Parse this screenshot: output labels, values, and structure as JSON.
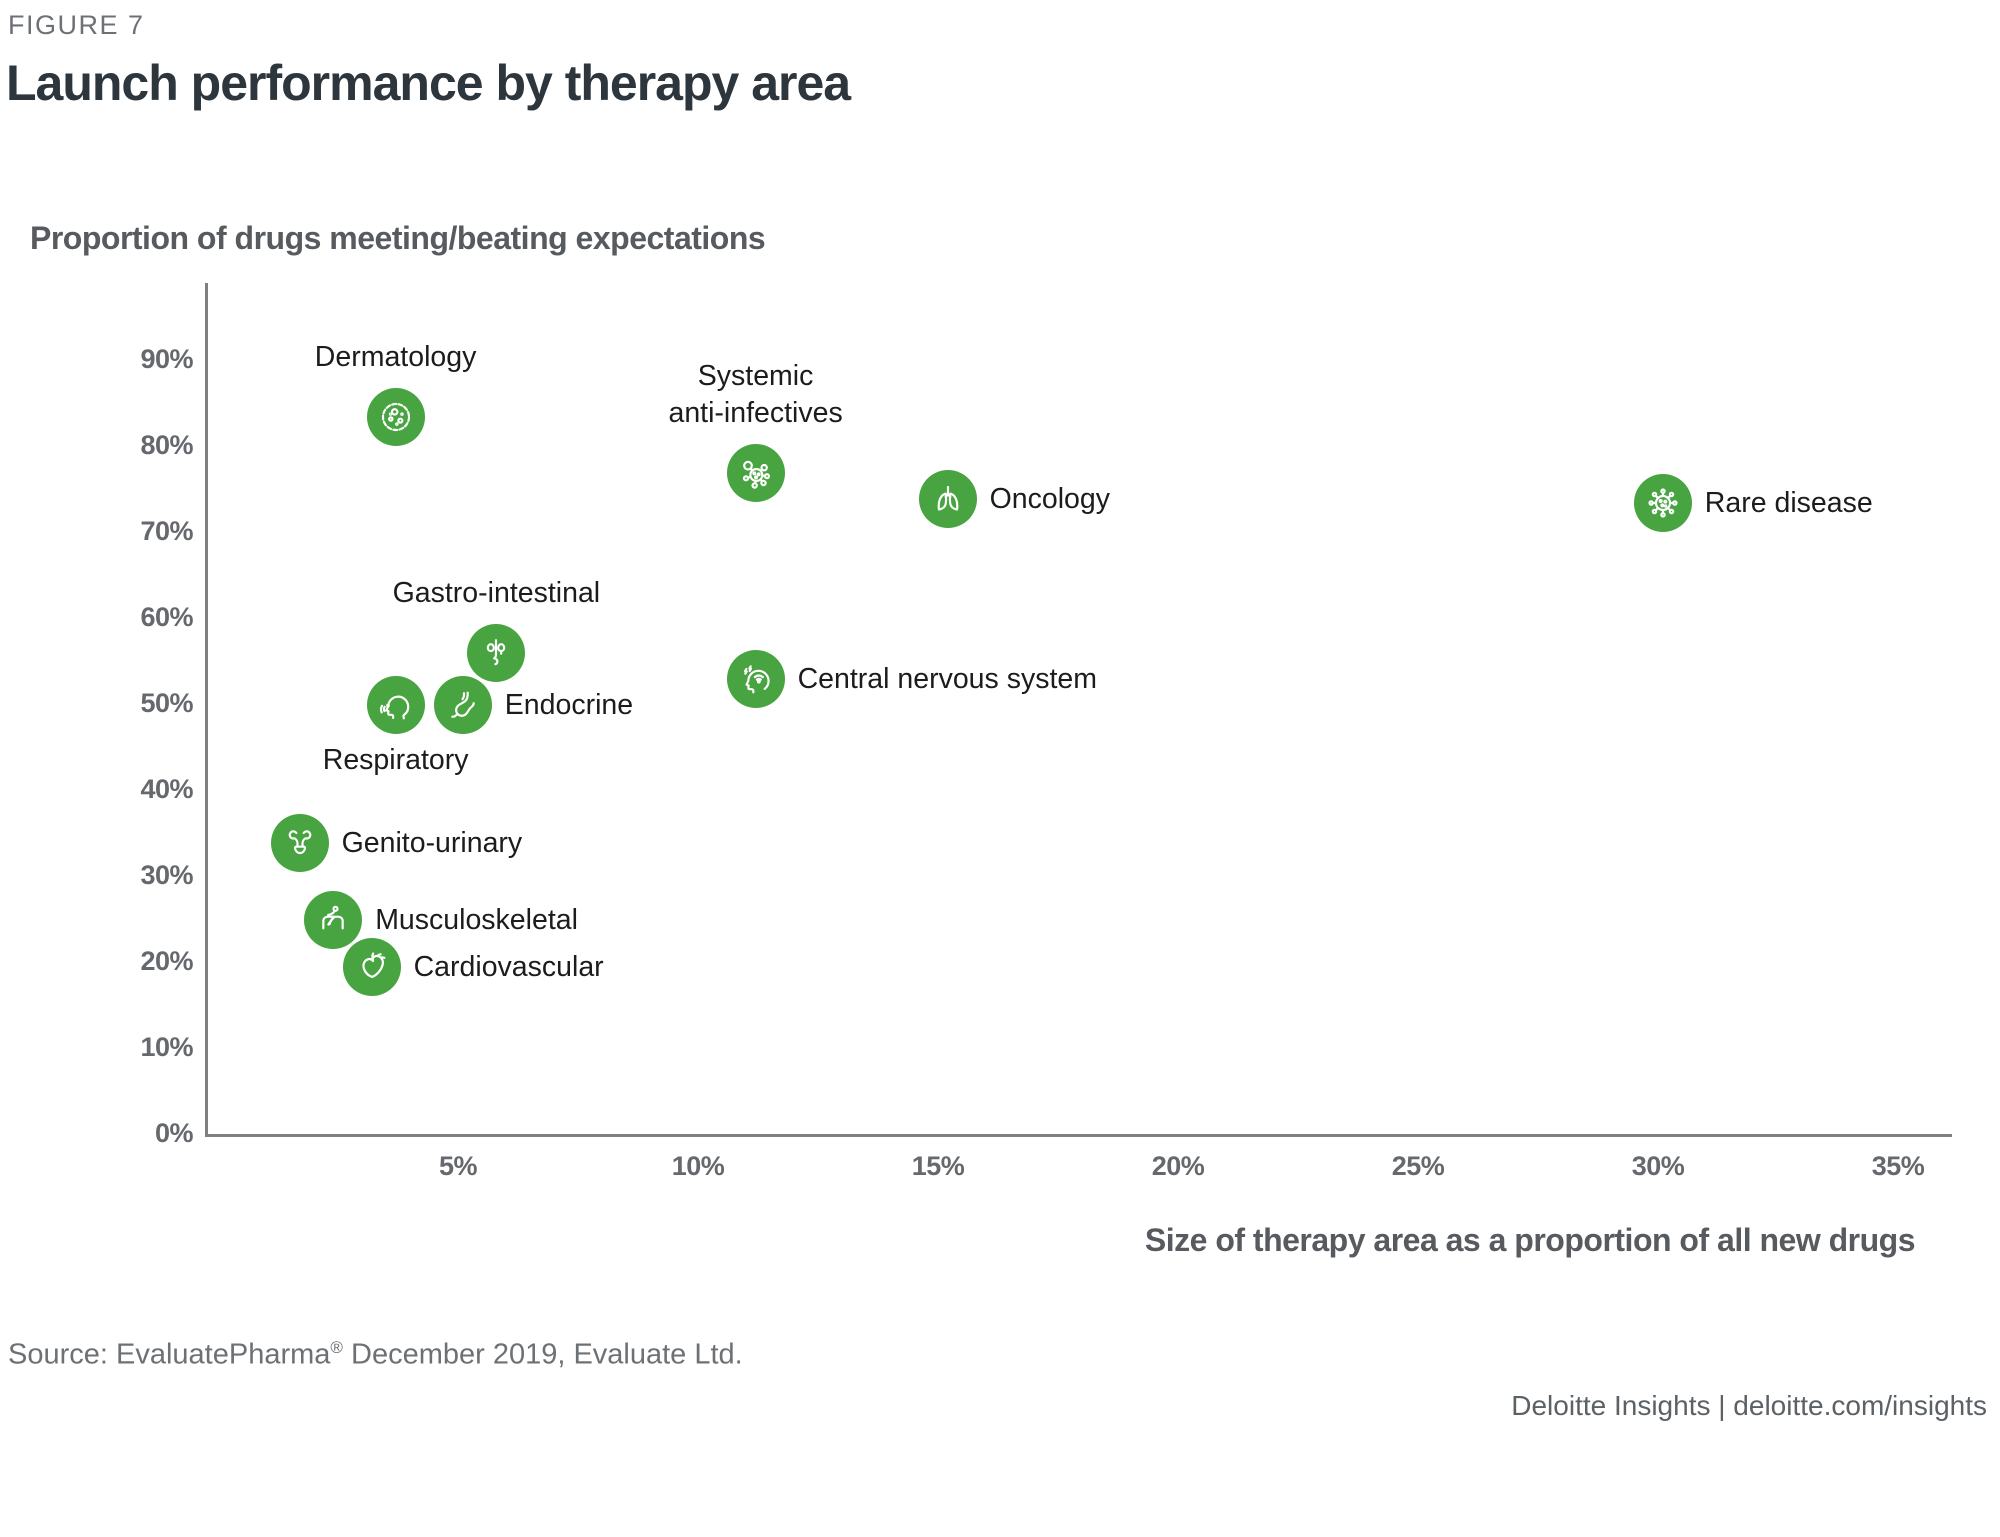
{
  "figure_label": "FIGURE 7",
  "title": "Launch performance by therapy area",
  "y_axis_title": "Proportion of drugs meeting/beating expectations",
  "x_axis_title": "Size of therapy area as a proportion of all new drugs",
  "source": {
    "prefix": "Source: EvaluatePharma",
    "registered_mark": "®",
    "suffix": " December 2019, Evaluate Ltd."
  },
  "footer": {
    "text": "Deloitte Insights | deloitte.com/insights"
  },
  "colors": {
    "bubble_green": "#47a440",
    "axis_gray": "#7e8184",
    "tick_text_gray": "#65686c",
    "title_dark": "#2d353d",
    "label_black": "#1c1c1c"
  },
  "chart_data": {
    "type": "scatter",
    "title": "Launch performance by therapy area",
    "xlabel": "Size of therapy area as a proportion of all new drugs",
    "ylabel": "Proportion of drugs meeting/beating expectations",
    "xlim": [
      0,
      36.3
    ],
    "ylim": [
      0,
      99
    ],
    "x_ticks": [
      5,
      10,
      15,
      20,
      25,
      30,
      35
    ],
    "y_ticks": [
      0,
      10,
      20,
      30,
      40,
      50,
      60,
      70,
      80,
      90
    ],
    "tick_format": "percent",
    "grid": false,
    "legend": "none",
    "points": [
      {
        "label": "Dermatology",
        "x": 3.7,
        "y": 83.5,
        "icon": "cell-icon",
        "label_pos": "above",
        "label_lines": [
          "Dermatology"
        ]
      },
      {
        "label": "Systemic anti-infectives",
        "x": 11.2,
        "y": 77,
        "icon": "microbe-icon",
        "label_pos": "above",
        "label_lines": [
          "Systemic",
          "anti-infectives"
        ]
      },
      {
        "label": "Oncology",
        "x": 15.2,
        "y": 74,
        "icon": "lungs-icon",
        "label_pos": "right",
        "label_lines": [
          "Oncology"
        ]
      },
      {
        "label": "Rare disease",
        "x": 30.1,
        "y": 73.5,
        "icon": "virus-icon",
        "label_pos": "right",
        "label_lines": [
          "Rare disease"
        ]
      },
      {
        "label": "Gastro-intestinal",
        "x": 5.8,
        "y": 56,
        "icon": "digestive-organs-icon",
        "label_pos": "above",
        "label_lines": [
          "Gastro-intestinal"
        ]
      },
      {
        "label": "Central nervous system",
        "x": 11.2,
        "y": 53,
        "icon": "head-brainwaves-icon",
        "label_pos": "right",
        "label_lines": [
          "Central nervous system"
        ]
      },
      {
        "label": "Respiratory",
        "x": 3.7,
        "y": 50,
        "icon": "coughing-face-icon",
        "label_pos": "below",
        "label_lines": [
          "Respiratory"
        ]
      },
      {
        "label": "Endocrine",
        "x": 5.1,
        "y": 50,
        "icon": "stomach-icon",
        "label_pos": "right",
        "label_lines": [
          "Endocrine"
        ]
      },
      {
        "label": "Genito-urinary",
        "x": 1.7,
        "y": 34,
        "icon": "kidneys-bladder-icon",
        "label_pos": "right",
        "label_lines": [
          "Genito-urinary"
        ]
      },
      {
        "label": "Musculoskeletal",
        "x": 2.4,
        "y": 25,
        "icon": "therapy-table-icon",
        "label_pos": "right",
        "label_lines": [
          "Musculoskeletal"
        ]
      },
      {
        "label": "Cardiovascular",
        "x": 3.2,
        "y": 19.5,
        "icon": "heart-organ-icon",
        "label_pos": "right",
        "label_lines": [
          "Cardiovascular"
        ]
      }
    ]
  }
}
